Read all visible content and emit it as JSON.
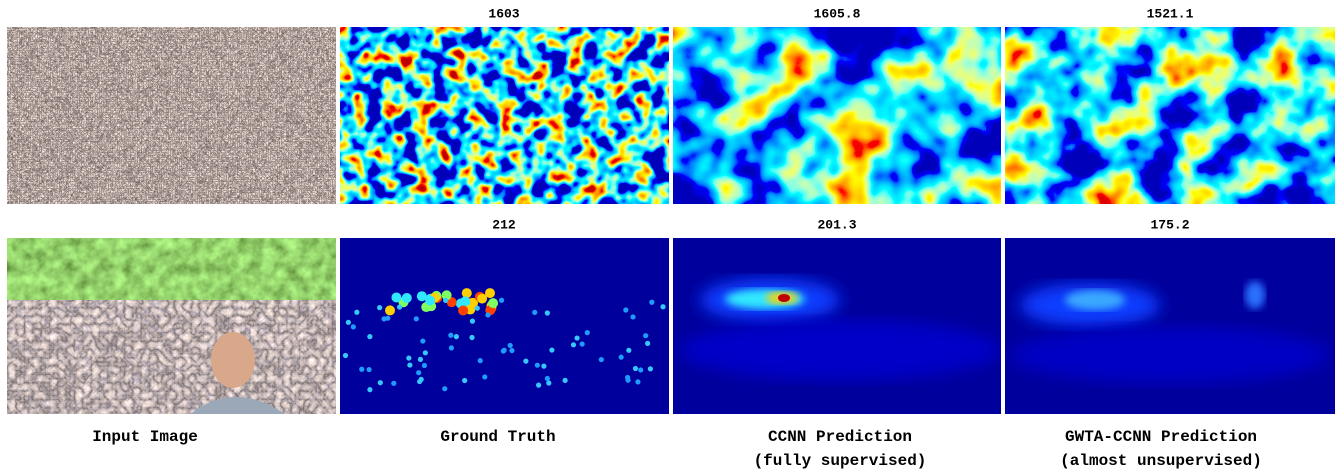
{
  "rows": [
    {
      "counts": [
        1603,
        1605.8,
        1521.1
      ]
    },
    {
      "counts": [
        212,
        201.3,
        175.2
      ]
    }
  ],
  "columns": [
    {
      "caption": [
        "Input Image"
      ]
    },
    {
      "caption": [
        "Ground Truth"
      ]
    },
    {
      "caption": [
        "CCNN Prediction",
        "(fully supervised)"
      ]
    },
    {
      "caption": [
        "GWTA-CCNN Prediction",
        "(almost unsupervised)"
      ]
    }
  ]
}
